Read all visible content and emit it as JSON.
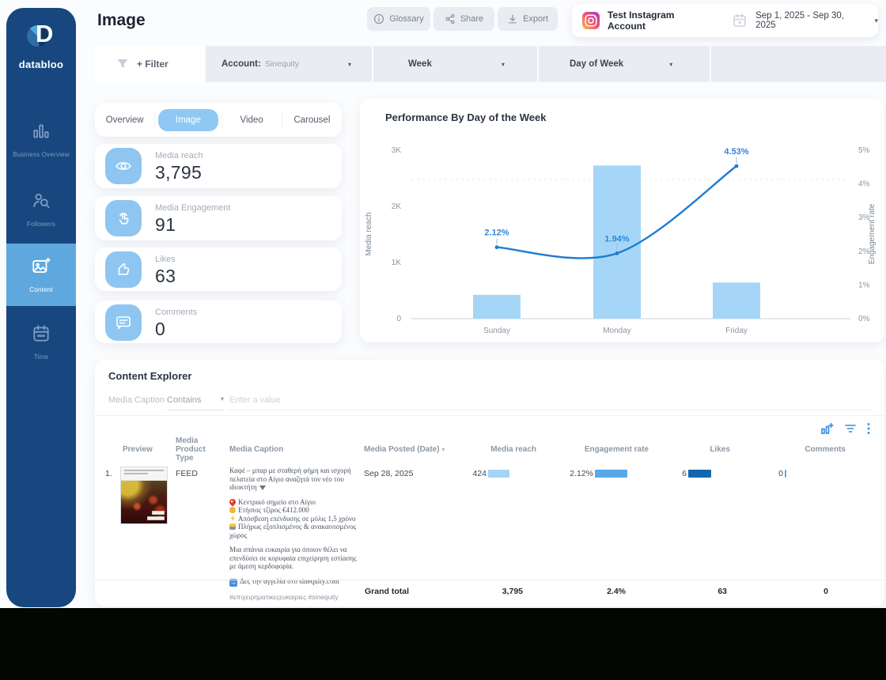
{
  "brand": {
    "name": "databloo"
  },
  "sidebar": {
    "items": [
      {
        "label": "Business Overview",
        "icon": "bar-chart-icon",
        "active": false
      },
      {
        "label": "Followers",
        "icon": "followers-search-icon",
        "active": false
      },
      {
        "label": "Content",
        "icon": "image-plus-icon",
        "active": true
      },
      {
        "label": "Time",
        "icon": "calendar-icon",
        "active": false
      }
    ]
  },
  "header": {
    "title": "Image",
    "glossary_label": "Glossary",
    "share_label": "Share",
    "export_label": "Export",
    "account_name": "Test Instagram Account",
    "date_range": "Sep 1, 2025 - Sep 30, 2025"
  },
  "filter_bar": {
    "add_filter": "+ Filter",
    "account_label": "Account:",
    "account_value": "Sinequity",
    "week_label": "Week",
    "day_of_week_label": "Day of Week"
  },
  "metrics": {
    "tabs": [
      {
        "label": "Overview"
      },
      {
        "label": "Image",
        "active": true
      },
      {
        "label": "Video"
      },
      {
        "label": "Carousel"
      }
    ],
    "cards": [
      {
        "label": "Media reach",
        "value": "3,795",
        "icon": "eye-icon"
      },
      {
        "label": "Media Engagement",
        "value": "91",
        "icon": "tap-icon"
      },
      {
        "label": "Likes",
        "value": "63",
        "icon": "thumbs-up-icon"
      },
      {
        "label": "Comments",
        "value": "0",
        "icon": "comment-icon"
      }
    ]
  },
  "chart_data": {
    "type": "bar",
    "title": "Performance By Day of the Week",
    "categories": [
      "Sunday",
      "Monday",
      "Friday"
    ],
    "series": [
      {
        "name": "Media reach",
        "type": "bar",
        "axis": "left",
        "values": [
          424,
          2728,
          643
        ],
        "color": "#a6d6f7"
      },
      {
        "name": "Engagement rate",
        "type": "line",
        "axis": "right",
        "values": [
          2.12,
          1.94,
          4.53
        ],
        "point_labels": [
          "2.12%",
          "1.94%",
          "4.53%"
        ],
        "color": "#1e7cd0"
      }
    ],
    "left_axis": {
      "label": "Media reach",
      "ticks": [
        "0",
        "1K",
        "2K",
        "3K"
      ],
      "range": [
        0,
        3000
      ]
    },
    "right_axis": {
      "label": "Engagement rate",
      "ticks": [
        "0%",
        "1%",
        "2%",
        "3%",
        "4%",
        "5%"
      ],
      "range": [
        0,
        5
      ]
    },
    "grid": "one dashed horizontal line near 4%",
    "legend": "none"
  },
  "content_explorer": {
    "title": "Content Explorer",
    "filter_field": "Media Caption",
    "filter_operator": "Contains",
    "filter_placeholder": "Enter a value",
    "toolbar_icons": [
      "chart-add-icon",
      "filter-lines-icon",
      "kebab-menu-icon"
    ],
    "columns": {
      "preview": "Preview",
      "media_product_type": "Media Product Type",
      "media_caption": "Media Caption",
      "media_posted": "Media Posted (Date)",
      "media_reach": "Media reach",
      "engagement_rate": "Engagement rate",
      "likes": "Likes",
      "comments": "Comments"
    },
    "rows": [
      {
        "index": "1.",
        "media_product_type": "FEED",
        "caption": {
          "intro": "Καφέ – μπαρ με σταθερή φήμη και ισχυρή πελατεία στο Αίγιο αναζητά τον νέο του ιδιοκτήτη",
          "intro_trailing_icon": "cocktail-emoji",
          "bullets": [
            {
              "icon": "pin-emoji",
              "text": "Κεντρικό σημείο στο Αίγιο"
            },
            {
              "icon": "money-bag-emoji",
              "text": "Ετήσιος τζίρος €412.000"
            },
            {
              "icon": "bolt-emoji",
              "text": "Απόσβεση επένδυσης σε μόλις 1,5 χρόνο"
            },
            {
              "icon": "construction-emoji",
              "text": "Πλήρως εξοπλισμένος & ανακαινισμένος χώρος"
            }
          ],
          "body": "Μια σπάνια ευκαιρία για όποιον θέλει να επενδύσει σε κορυφαία επιχείρηση εστίασης με άμεση κερδοφορία.",
          "cta_icon": "arrow-right-emoji",
          "cta": "Δες την αγγελία στο sinequity.com",
          "hashtags": "#επιχειρηματικεςευκαιριες #sinequity"
        },
        "media_posted": "Sep 28, 2025",
        "media_reach": "424",
        "engagement_rate": "2.12%",
        "likes": "6",
        "comments": "0"
      }
    ],
    "grand_total": {
      "label": "Grand total",
      "media_reach": "3,795",
      "engagement_rate": "2.4%",
      "likes": "63",
      "comments": "0"
    }
  },
  "colors": {
    "sidebar": "#17477e",
    "sidebar_active": "#5fa8dd",
    "accent_blue": "#2e8be0",
    "bar_fill": "#a6d6f7",
    "line_stroke": "#1e7cd0",
    "metric_icon_bg": "#8fc6f1",
    "reach_minibar": "#a6d4f4",
    "engagement_minibar": "#58a9e7",
    "likes_minibar": "#1168b0"
  }
}
